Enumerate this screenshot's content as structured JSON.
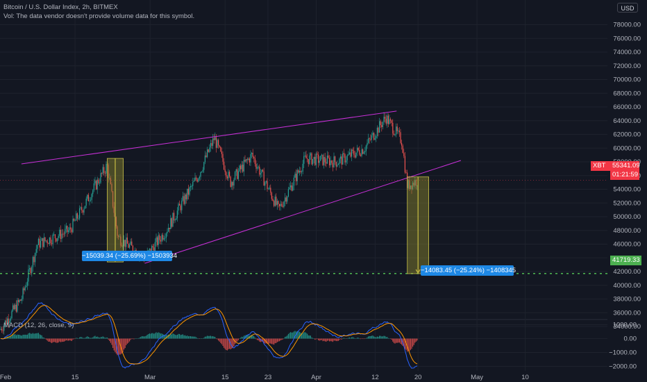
{
  "header": {
    "title": "Bitcoin / U.S. Dollar Index, 2h, BITMEX",
    "vol_note": "Vol: The data vendor doesn't provide volume data for this symbol.",
    "currency_button": "USD"
  },
  "price_tags": {
    "symbol": "XBT",
    "last_price": "55341.09",
    "countdown": "01:21:59",
    "support_level": "41719.33"
  },
  "measurements": [
    {
      "label": "−15039.34 (−25.69%) −1503934"
    },
    {
      "label": "−14083.45 (−25.24%) −1408345"
    }
  ],
  "macd": {
    "legend": "MACD (12, 26, close, 9)"
  },
  "colors": {
    "background": "#131722",
    "up": "#26a69a",
    "down": "#ef5350",
    "channel": "#c930d9",
    "support": "#4caf50",
    "measure_box": "#8f8a2e",
    "measure_label": "#1e88e5",
    "macd_line": "#2962ff",
    "signal_line": "#ff9800"
  },
  "chart_data": [
    {
      "type": "candlestick",
      "title": "Bitcoin / U.S. Dollar Index, 2h, BITMEX",
      "ylim": [
        33000,
        79000
      ],
      "y_ticks": [
        34000,
        36000,
        38000,
        40000,
        42000,
        44000,
        46000,
        48000,
        50000,
        52000,
        54000,
        56000,
        58000,
        60000,
        62000,
        64000,
        66000,
        68000,
        70000,
        72000,
        74000,
        76000,
        78000
      ],
      "x_ticks": [
        "Feb",
        "15",
        "Mar",
        "15",
        "23",
        "Apr",
        "12",
        "20",
        "May",
        "10"
      ],
      "approx_closes": [
        {
          "date": "2021-02-01",
          "value": 33500
        },
        {
          "date": "2021-02-05",
          "value": 38000
        },
        {
          "date": "2021-02-08",
          "value": 46000
        },
        {
          "date": "2021-02-14",
          "value": 48000
        },
        {
          "date": "2021-02-21",
          "value": 57500
        },
        {
          "date": "2021-02-23",
          "value": 47000
        },
        {
          "date": "2021-02-28",
          "value": 44000
        },
        {
          "date": "2021-03-04",
          "value": 48000
        },
        {
          "date": "2021-03-10",
          "value": 56000
        },
        {
          "date": "2021-03-13",
          "value": 61500
        },
        {
          "date": "2021-03-16",
          "value": 55000
        },
        {
          "date": "2021-03-20",
          "value": 59000
        },
        {
          "date": "2021-03-25",
          "value": 51000
        },
        {
          "date": "2021-03-30",
          "value": 58500
        },
        {
          "date": "2021-04-05",
          "value": 58000
        },
        {
          "date": "2021-04-10",
          "value": 60000
        },
        {
          "date": "2021-04-14",
          "value": 64500
        },
        {
          "date": "2021-04-17",
          "value": 61000
        },
        {
          "date": "2021-04-18",
          "value": 54500
        },
        {
          "date": "2021-04-20",
          "value": 55341
        }
      ],
      "channel_upper": [
        {
          "date": "2021-02-05",
          "value": 57700
        },
        {
          "date": "2021-04-16",
          "value": 65400
        }
      ],
      "channel_lower": [
        {
          "date": "2021-02-28",
          "value": 43200
        },
        {
          "date": "2021-04-28",
          "value": 58200
        }
      ],
      "horizontal_support": 41719.33,
      "measure_boxes": [
        {
          "from": "2021-02-21",
          "to": "2021-02-24",
          "top": 58500,
          "bottom": 43400,
          "change": "−15039.34 (−25.69%)"
        },
        {
          "from": "2021-04-18",
          "to": "2021-04-22",
          "top": 55800,
          "bottom": 41700,
          "change": "−14083.45 (−25.24%)"
        }
      ]
    },
    {
      "type": "bar",
      "title": "MACD (12, 26, close, 9)",
      "ylim": [
        -2300,
        1300
      ],
      "y_ticks": [
        1000,
        0,
        -1000,
        -2000
      ],
      "series": [
        {
          "name": "MACD",
          "color": "#2962ff"
        },
        {
          "name": "Signal",
          "color": "#ff9800"
        },
        {
          "name": "Histogram",
          "color": "#26a69a"
        }
      ]
    }
  ]
}
